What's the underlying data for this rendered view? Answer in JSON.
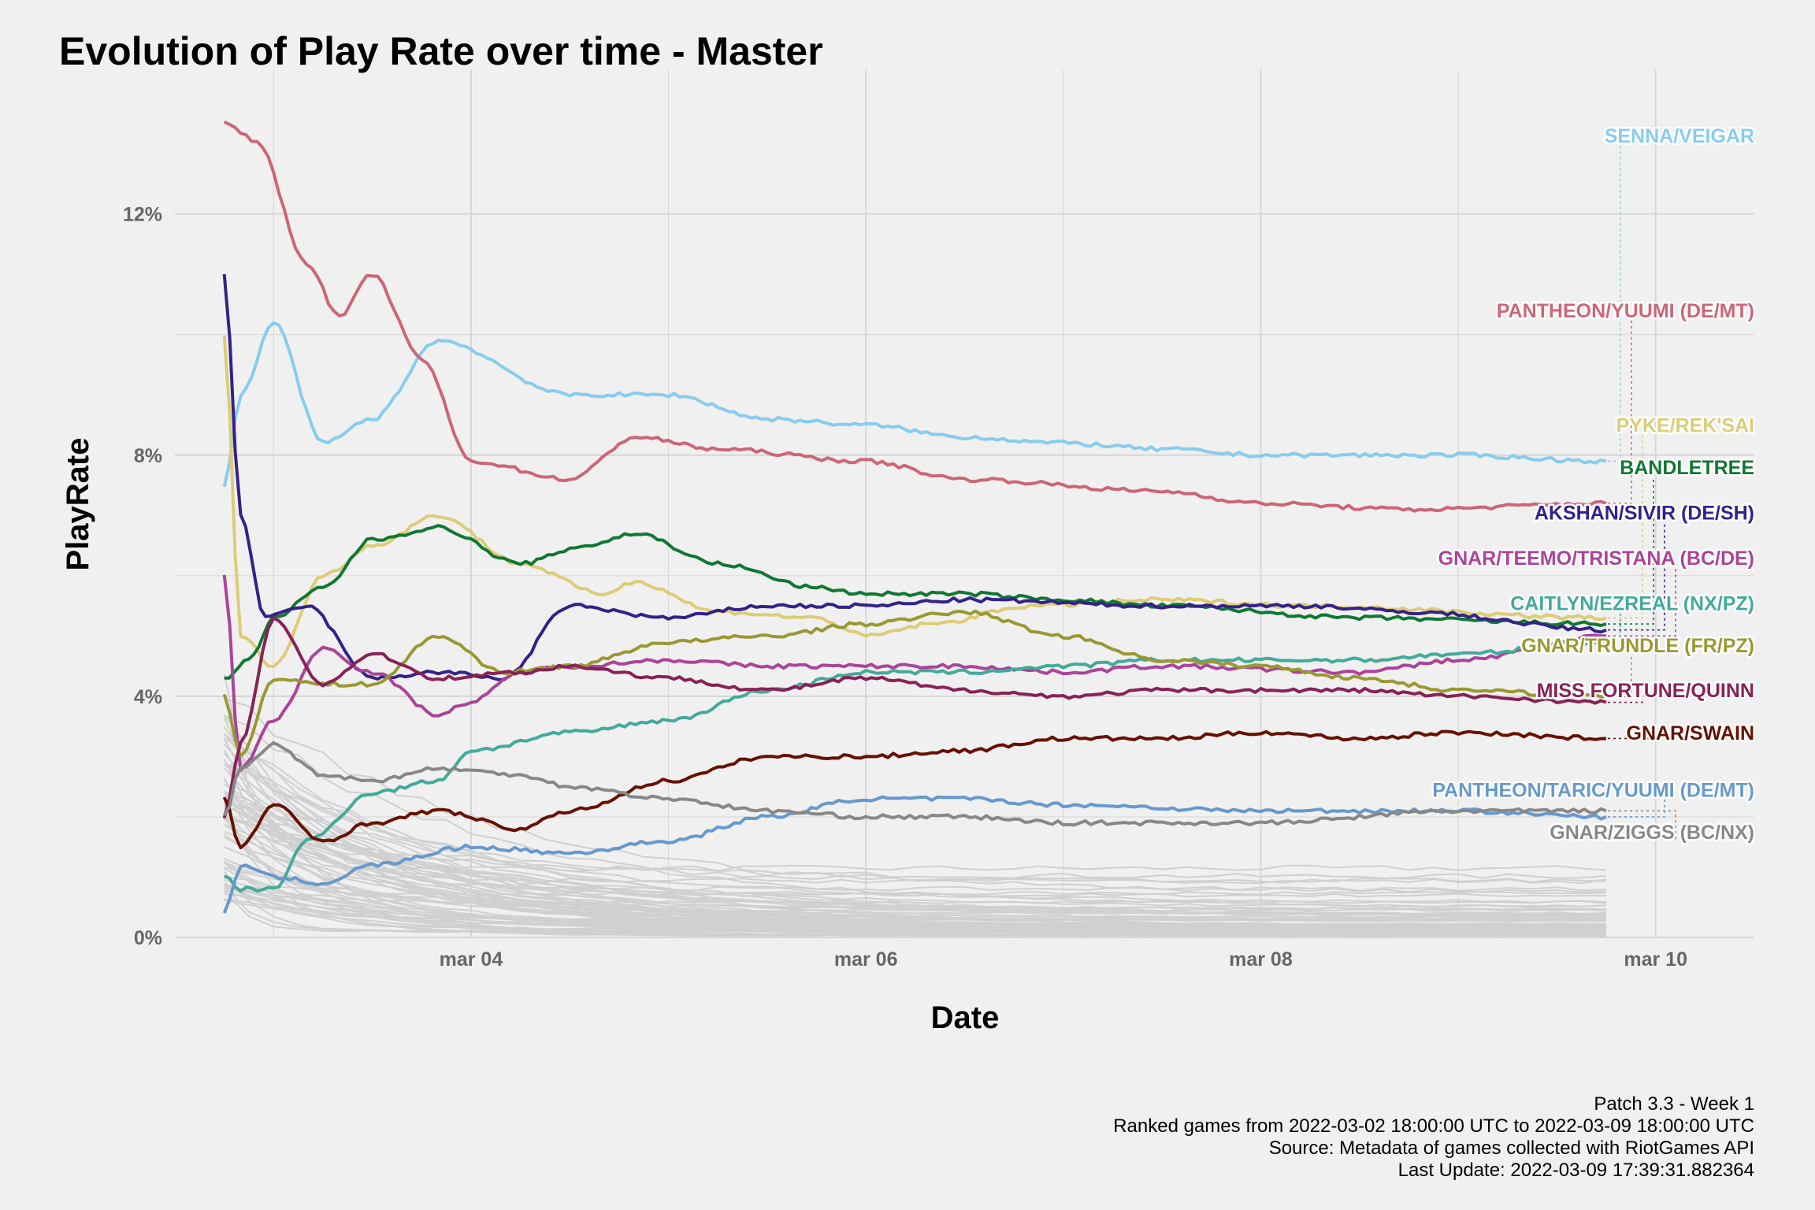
{
  "chart_data": {
    "type": "line",
    "title": "Evolution of Play Rate over time - Master",
    "xlabel": "Date",
    "ylabel": "PlayRate",
    "x_ticks": [
      {
        "date": "2022-03-04",
        "label": "mar 04"
      },
      {
        "date": "2022-03-06",
        "label": "mar 06"
      },
      {
        "date": "2022-03-08",
        "label": "mar 08"
      },
      {
        "date": "2022-03-10",
        "label": "mar 10"
      }
    ],
    "y_ticks": [
      {
        "value": 0,
        "label": "0%"
      },
      {
        "value": 4,
        "label": "4%"
      },
      {
        "value": 8,
        "label": "8%"
      },
      {
        "value": 12,
        "label": "12%"
      }
    ],
    "xlim": [
      "2022-03-02 12:00",
      "2022-03-10 12:00"
    ],
    "ylim": [
      0,
      14.4
    ],
    "grid": true,
    "legend": "direct labels on right",
    "series": [
      {
        "name": "SENNA/VEIGAR",
        "color": "#88ccee",
        "label_y": 13.3,
        "points": [
          [
            "2022-03-02 18:00",
            7.5
          ],
          [
            "2022-03-02 20:00",
            9.0
          ],
          [
            "2022-03-03 00:00",
            10.2
          ],
          [
            "2022-03-03 06:00",
            8.2
          ],
          [
            "2022-03-03 12:00",
            8.6
          ],
          [
            "2022-03-03 20:00",
            9.9
          ],
          [
            "2022-03-04 12:00",
            9.0
          ],
          [
            "2022-03-05 00:00",
            9.0
          ],
          [
            "2022-03-05 12:00",
            8.6
          ],
          [
            "2022-03-06 00:00",
            8.5
          ],
          [
            "2022-03-06 12:00",
            8.3
          ],
          [
            "2022-03-07 00:00",
            8.2
          ],
          [
            "2022-03-07 12:00",
            8.1
          ],
          [
            "2022-03-08 00:00",
            8.0
          ],
          [
            "2022-03-08 12:00",
            8.0
          ],
          [
            "2022-03-09 00:00",
            8.0
          ],
          [
            "2022-03-09 18:00",
            7.9
          ]
        ]
      },
      {
        "name": "PANTHEON/YUUMI (DE/MT)",
        "color": "#cc6677",
        "label_y": 10.4,
        "points": [
          [
            "2022-03-02 18:00",
            13.5
          ],
          [
            "2022-03-02 22:00",
            13.2
          ],
          [
            "2022-03-03 04:00",
            11.2
          ],
          [
            "2022-03-03 08:00",
            10.3
          ],
          [
            "2022-03-03 12:00",
            11.0
          ],
          [
            "2022-03-03 18:00",
            9.6
          ],
          [
            "2022-03-04 00:00",
            7.9
          ],
          [
            "2022-03-04 12:00",
            7.6
          ],
          [
            "2022-03-04 20:00",
            8.3
          ],
          [
            "2022-03-05 06:00",
            8.1
          ],
          [
            "2022-03-06 00:00",
            7.9
          ],
          [
            "2022-03-06 12:00",
            7.6
          ],
          [
            "2022-03-07 12:00",
            7.4
          ],
          [
            "2022-03-08 00:00",
            7.2
          ],
          [
            "2022-03-08 18:00",
            7.1
          ],
          [
            "2022-03-09 18:00",
            7.2
          ]
        ]
      },
      {
        "name": "PYKE/REK'SAI",
        "color": "#ddcc77",
        "label_y": 8.5,
        "points": [
          [
            "2022-03-02 18:00",
            10.0
          ],
          [
            "2022-03-02 20:00",
            5.0
          ],
          [
            "2022-03-03 00:00",
            4.5
          ],
          [
            "2022-03-03 06:00",
            6.0
          ],
          [
            "2022-03-03 12:00",
            6.5
          ],
          [
            "2022-03-03 20:00",
            7.0
          ],
          [
            "2022-03-04 06:00",
            6.2
          ],
          [
            "2022-03-04 16:00",
            5.7
          ],
          [
            "2022-03-04 20:00",
            5.9
          ],
          [
            "2022-03-05 06:00",
            5.4
          ],
          [
            "2022-03-05 18:00",
            5.3
          ],
          [
            "2022-03-06 00:00",
            5.0
          ],
          [
            "2022-03-06 08:00",
            5.2
          ],
          [
            "2022-03-06 20:00",
            5.5
          ],
          [
            "2022-03-07 12:00",
            5.6
          ],
          [
            "2022-03-08 06:00",
            5.5
          ],
          [
            "2022-03-09 18:00",
            5.3
          ]
        ]
      },
      {
        "name": "BANDLETREE",
        "color": "#117733",
        "label_y": 7.8,
        "points": [
          [
            "2022-03-02 18:00",
            4.3
          ],
          [
            "2022-03-02 21:00",
            4.6
          ],
          [
            "2022-03-03 00:00",
            5.3
          ],
          [
            "2022-03-03 06:00",
            5.8
          ],
          [
            "2022-03-03 12:00",
            6.6
          ],
          [
            "2022-03-03 20:00",
            6.8
          ],
          [
            "2022-03-04 06:00",
            6.2
          ],
          [
            "2022-03-04 14:00",
            6.5
          ],
          [
            "2022-03-04 20:00",
            6.7
          ],
          [
            "2022-03-05 06:00",
            6.2
          ],
          [
            "2022-03-05 18:00",
            5.8
          ],
          [
            "2022-03-06 00:00",
            5.7
          ],
          [
            "2022-03-06 12:00",
            5.7
          ],
          [
            "2022-03-07 00:00",
            5.6
          ],
          [
            "2022-03-07 12:00",
            5.5
          ],
          [
            "2022-03-08 12:00",
            5.3
          ],
          [
            "2022-03-09 18:00",
            5.2
          ]
        ]
      },
      {
        "name": "AKSHAN/SIVIR (DE/SH)",
        "color": "#332288",
        "label_y": 7.05,
        "points": [
          [
            "2022-03-02 18:00",
            11.0
          ],
          [
            "2022-03-02 20:00",
            7.0
          ],
          [
            "2022-03-02 23:00",
            5.3
          ],
          [
            "2022-03-03 04:00",
            5.5
          ],
          [
            "2022-03-03 12:00",
            4.3
          ],
          [
            "2022-03-03 20:00",
            4.4
          ],
          [
            "2022-03-04 04:00",
            4.3
          ],
          [
            "2022-03-04 12:00",
            5.5
          ],
          [
            "2022-03-05 00:00",
            5.3
          ],
          [
            "2022-03-05 12:00",
            5.5
          ],
          [
            "2022-03-06 00:00",
            5.5
          ],
          [
            "2022-03-06 12:00",
            5.6
          ],
          [
            "2022-03-07 12:00",
            5.5
          ],
          [
            "2022-03-08 06:00",
            5.5
          ],
          [
            "2022-03-08 18:00",
            5.4
          ],
          [
            "2022-03-09 18:00",
            5.1
          ]
        ]
      },
      {
        "name": "GNAR/TEEMO/TRISTANA (BC/DE)",
        "color": "#aa4499",
        "label_y": 6.3,
        "points": [
          [
            "2022-03-02 18:00",
            6.0
          ],
          [
            "2022-03-02 20:00",
            2.8
          ],
          [
            "2022-03-03 00:00",
            3.6
          ],
          [
            "2022-03-03 06:00",
            4.8
          ],
          [
            "2022-03-03 12:00",
            4.4
          ],
          [
            "2022-03-03 20:00",
            3.7
          ],
          [
            "2022-03-04 00:00",
            3.9
          ],
          [
            "2022-03-04 06:00",
            4.4
          ],
          [
            "2022-03-04 12:00",
            4.5
          ],
          [
            "2022-03-05 00:00",
            4.6
          ],
          [
            "2022-03-05 12:00",
            4.5
          ],
          [
            "2022-03-06 00:00",
            4.5
          ],
          [
            "2022-03-06 12:00",
            4.5
          ],
          [
            "2022-03-07 00:00",
            4.4
          ],
          [
            "2022-03-07 12:00",
            4.5
          ],
          [
            "2022-03-08 12:00",
            4.4
          ],
          [
            "2022-03-09 00:00",
            4.6
          ],
          [
            "2022-03-09 18:00",
            5.0
          ]
        ]
      },
      {
        "name": "CAITLYN/EZREAL (NX/PZ)",
        "color": "#44aa99",
        "label_y": 5.55,
        "points": [
          [
            "2022-03-02 18:00",
            1.0
          ],
          [
            "2022-03-02 20:00",
            0.8
          ],
          [
            "2022-03-03 00:00",
            0.8
          ],
          [
            "2022-03-03 04:00",
            1.6
          ],
          [
            "2022-03-03 12:00",
            2.4
          ],
          [
            "2022-03-03 20:00",
            2.6
          ],
          [
            "2022-03-04 00:00",
            3.1
          ],
          [
            "2022-03-04 12:00",
            3.4
          ],
          [
            "2022-03-05 00:00",
            3.6
          ],
          [
            "2022-03-05 12:00",
            4.1
          ],
          [
            "2022-03-06 00:00",
            4.4
          ],
          [
            "2022-03-06 12:00",
            4.4
          ],
          [
            "2022-03-07 00:00",
            4.5
          ],
          [
            "2022-03-07 12:00",
            4.6
          ],
          [
            "2022-03-08 12:00",
            4.6
          ],
          [
            "2022-03-09 00:00",
            4.7
          ],
          [
            "2022-03-09 18:00",
            4.9
          ]
        ]
      },
      {
        "name": "GNAR/TRUNDLE (FR/PZ)",
        "color": "#999933",
        "label_y": 4.85,
        "points": [
          [
            "2022-03-02 18:00",
            4.0
          ],
          [
            "2022-03-02 20:00",
            3.0
          ],
          [
            "2022-03-03 00:00",
            4.3
          ],
          [
            "2022-03-03 06:00",
            4.2
          ],
          [
            "2022-03-03 12:00",
            4.2
          ],
          [
            "2022-03-03 20:00",
            5.0
          ],
          [
            "2022-03-04 04:00",
            4.4
          ],
          [
            "2022-03-04 12:00",
            4.5
          ],
          [
            "2022-03-05 00:00",
            4.9
          ],
          [
            "2022-03-05 12:00",
            5.0
          ],
          [
            "2022-03-06 00:00",
            5.2
          ],
          [
            "2022-03-06 12:00",
            5.4
          ],
          [
            "2022-03-07 00:00",
            5.0
          ],
          [
            "2022-03-07 12:00",
            4.6
          ],
          [
            "2022-03-08 00:00",
            4.5
          ],
          [
            "2022-03-08 12:00",
            4.3
          ],
          [
            "2022-03-09 00:00",
            4.1
          ],
          [
            "2022-03-09 18:00",
            4.0
          ]
        ]
      },
      {
        "name": "MISS FORTUNE/QUINN",
        "color": "#882255",
        "label_y": 4.1,
        "points": [
          [
            "2022-03-02 18:00",
            2.0
          ],
          [
            "2022-03-02 20:00",
            3.2
          ],
          [
            "2022-03-03 00:00",
            5.3
          ],
          [
            "2022-03-03 06:00",
            4.2
          ],
          [
            "2022-03-03 12:00",
            4.7
          ],
          [
            "2022-03-03 20:00",
            4.3
          ],
          [
            "2022-03-04 06:00",
            4.4
          ],
          [
            "2022-03-04 12:00",
            4.5
          ],
          [
            "2022-03-05 00:00",
            4.3
          ],
          [
            "2022-03-05 12:00",
            4.1
          ],
          [
            "2022-03-06 00:00",
            4.3
          ],
          [
            "2022-03-06 12:00",
            4.1
          ],
          [
            "2022-03-07 00:00",
            4.0
          ],
          [
            "2022-03-07 12:00",
            4.1
          ],
          [
            "2022-03-08 12:00",
            4.1
          ],
          [
            "2022-03-09 00:00",
            4.0
          ],
          [
            "2022-03-09 18:00",
            3.9
          ]
        ]
      },
      {
        "name": "GNAR/SWAIN",
        "color": "#661100",
        "label_y": 3.4,
        "points": [
          [
            "2022-03-02 18:00",
            2.3
          ],
          [
            "2022-03-02 20:00",
            1.5
          ],
          [
            "2022-03-03 00:00",
            2.2
          ],
          [
            "2022-03-03 06:00",
            1.6
          ],
          [
            "2022-03-03 12:00",
            1.9
          ],
          [
            "2022-03-03 20:00",
            2.1
          ],
          [
            "2022-03-04 06:00",
            1.8
          ],
          [
            "2022-03-04 12:00",
            2.1
          ],
          [
            "2022-03-05 00:00",
            2.6
          ],
          [
            "2022-03-05 12:00",
            3.0
          ],
          [
            "2022-03-06 00:00",
            3.0
          ],
          [
            "2022-03-06 12:00",
            3.1
          ],
          [
            "2022-03-07 00:00",
            3.3
          ],
          [
            "2022-03-07 12:00",
            3.3
          ],
          [
            "2022-03-08 00:00",
            3.4
          ],
          [
            "2022-03-08 12:00",
            3.3
          ],
          [
            "2022-03-09 00:00",
            3.4
          ],
          [
            "2022-03-09 18:00",
            3.3
          ]
        ]
      },
      {
        "name": "PANTHEON/TARIC/YUUMI (DE/MT)",
        "color": "#6699cc",
        "label_y": 2.45,
        "points": [
          [
            "2022-03-02 18:00",
            0.4
          ],
          [
            "2022-03-02 20:00",
            1.2
          ],
          [
            "2022-03-03 00:00",
            1.0
          ],
          [
            "2022-03-03 06:00",
            0.9
          ],
          [
            "2022-03-03 12:00",
            1.2
          ],
          [
            "2022-03-04 00:00",
            1.5
          ],
          [
            "2022-03-04 12:00",
            1.4
          ],
          [
            "2022-03-05 00:00",
            1.6
          ],
          [
            "2022-03-05 12:00",
            2.0
          ],
          [
            "2022-03-06 00:00",
            2.3
          ],
          [
            "2022-03-06 12:00",
            2.3
          ],
          [
            "2022-03-07 00:00",
            2.2
          ],
          [
            "2022-03-08 00:00",
            2.1
          ],
          [
            "2022-03-09 00:00",
            2.1
          ],
          [
            "2022-03-09 18:00",
            2.0
          ]
        ]
      },
      {
        "name": "GNAR/ZIGGS (BC/NX)",
        "color": "#888888",
        "label_y": 1.75,
        "points": [
          [
            "2022-03-02 18:00",
            2.0
          ],
          [
            "2022-03-02 20:00",
            2.8
          ],
          [
            "2022-03-03 00:00",
            3.2
          ],
          [
            "2022-03-03 06:00",
            2.7
          ],
          [
            "2022-03-03 12:00",
            2.6
          ],
          [
            "2022-03-03 20:00",
            2.8
          ],
          [
            "2022-03-04 06:00",
            2.7
          ],
          [
            "2022-03-04 12:00",
            2.5
          ],
          [
            "2022-03-05 00:00",
            2.3
          ],
          [
            "2022-03-05 12:00",
            2.1
          ],
          [
            "2022-03-06 00:00",
            2.0
          ],
          [
            "2022-03-06 12:00",
            2.0
          ],
          [
            "2022-03-07 00:00",
            1.9
          ],
          [
            "2022-03-08 00:00",
            1.9
          ],
          [
            "2022-03-09 00:00",
            2.1
          ],
          [
            "2022-03-09 18:00",
            2.1
          ]
        ]
      }
    ]
  },
  "caption": {
    "line1": "Patch 3.3 - Week 1",
    "line2": "Ranked games from 2022-03-02 18:00:00 UTC to 2022-03-09 18:00:00 UTC",
    "line3": "Source: Metadata of games collected with RiotGames API",
    "line4": "Last Update: 2022-03-09 17:39:31.882364"
  },
  "colors": {
    "background": "#f0f0f0",
    "grid": "#d6d6d6",
    "background_lines": "#d0d0d0"
  }
}
